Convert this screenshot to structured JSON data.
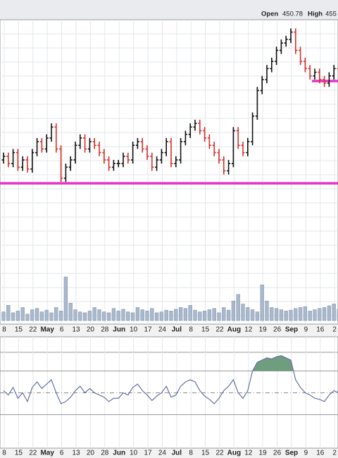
{
  "chart_data": {
    "type": "ohlc",
    "header": {
      "open_label": "Open",
      "open": 450.78,
      "high_label": "High",
      "high": 455
    },
    "categories": [
      "8",
      null,
      null,
      "15",
      null,
      null,
      "22",
      null,
      null,
      "May",
      null,
      null,
      "6",
      null,
      null,
      "13",
      null,
      null,
      "20",
      null,
      null,
      "28",
      null,
      null,
      "Jun",
      null,
      null,
      "10",
      null,
      null,
      "17",
      null,
      null,
      "24",
      null,
      null,
      "Jul",
      null,
      null,
      "8",
      null,
      null,
      "15",
      null,
      null,
      "22",
      null,
      null,
      "Aug",
      null,
      null,
      "12",
      null,
      null,
      "19",
      null,
      null,
      "26",
      null,
      null,
      "Sep",
      null,
      null,
      "9",
      null,
      null,
      "16",
      null,
      null,
      "2",
      null,
      null
    ],
    "month_labels": [
      "May",
      "Jun",
      "Jul",
      "Aug",
      "Sep"
    ],
    "ylim": [
      380,
      462
    ],
    "up_color": "#111111",
    "down_color": "#d9302a",
    "open": [
      424,
      425,
      423,
      426,
      422,
      424,
      421.5,
      426,
      429,
      427,
      430,
      433,
      427,
      419,
      422,
      424,
      428,
      430,
      427,
      429,
      428,
      426,
      424,
      422,
      423,
      423,
      425,
      424,
      428,
      429,
      427,
      425,
      422,
      424,
      426,
      429,
      423,
      424,
      429,
      431,
      433,
      434,
      432,
      430,
      428,
      426,
      424,
      421,
      423,
      432,
      428,
      426,
      429,
      436,
      443,
      446,
      449,
      451,
      454,
      456,
      457,
      459,
      454,
      451,
      449,
      447,
      448,
      446,
      445,
      447,
      449,
      447
    ],
    "high": [
      426,
      426,
      427,
      427,
      425,
      425,
      427,
      430,
      430,
      431,
      434,
      434,
      428,
      423,
      425,
      429,
      431,
      431,
      430,
      430,
      429,
      427,
      425,
      424,
      424,
      426,
      426,
      429,
      430,
      430,
      428,
      426,
      425,
      427,
      430,
      430,
      425,
      430,
      432,
      434,
      435,
      435,
      433,
      431,
      429,
      427,
      425,
      424,
      433,
      433,
      429,
      430,
      437,
      444,
      447,
      450,
      452,
      455,
      457,
      458,
      460,
      460,
      455,
      452,
      450,
      449,
      449,
      447,
      448,
      450,
      450,
      449
    ],
    "low": [
      423,
      422,
      422,
      421,
      421,
      420.5,
      420.5,
      425,
      426,
      426,
      429,
      426,
      418,
      418,
      421,
      423,
      427,
      426,
      426,
      427,
      425,
      423,
      421,
      421,
      422,
      422,
      423,
      423,
      427,
      426,
      424,
      421,
      421,
      423,
      425,
      422,
      422,
      423,
      428,
      430,
      432,
      431,
      429,
      427,
      425,
      423,
      420,
      420,
      422,
      427,
      425,
      425,
      428,
      435,
      442,
      445,
      448,
      450,
      453,
      455,
      456,
      453,
      450,
      448,
      446,
      446,
      445,
      444,
      444,
      446,
      446,
      446
    ],
    "close": [
      425,
      423,
      426,
      422,
      424,
      421.5,
      426,
      429,
      427,
      430,
      433,
      427,
      419,
      422,
      424,
      428,
      430,
      427,
      429,
      428,
      426,
      424,
      422,
      423,
      423,
      425,
      424,
      428,
      429,
      427,
      425,
      422,
      424,
      426,
      429,
      423,
      424,
      429,
      431,
      433,
      434,
      432,
      430,
      428,
      426,
      424,
      421,
      423,
      432,
      428,
      426,
      429,
      436,
      443,
      446,
      449,
      451,
      454,
      456,
      457,
      459,
      454,
      451,
      449,
      447,
      448,
      446,
      445,
      447,
      449,
      447,
      448
    ],
    "levels": [
      417.6,
      445.6
    ],
    "level_color": "#e235c8",
    "volume": {
      "values": [
        20,
        35,
        18,
        22,
        30,
        15,
        25,
        28,
        20,
        24,
        18,
        30,
        22,
        100,
        40,
        25,
        20,
        18,
        22,
        30,
        25,
        20,
        18,
        28,
        22,
        26,
        20,
        18,
        30,
        25,
        22,
        28,
        18,
        20,
        24,
        22,
        26,
        30,
        28,
        35,
        24,
        20,
        22,
        25,
        28,
        18,
        30,
        24,
        45,
        60,
        38,
        30,
        25,
        20,
        82,
        45,
        30,
        28,
        25,
        22,
        24,
        28,
        30,
        32,
        22,
        25,
        28,
        30,
        34,
        38,
        26,
        40
      ],
      "ylim": [
        0,
        100
      ],
      "color": "#a9b8cc"
    },
    "rsi": {
      "values": [
        52,
        48,
        55,
        45,
        50,
        42,
        55,
        60,
        54,
        58,
        62,
        50,
        40,
        42,
        46,
        52,
        56,
        50,
        54,
        50,
        48,
        46,
        42,
        45,
        45,
        50,
        48,
        55,
        58,
        52,
        48,
        43,
        47,
        50,
        56,
        46,
        48,
        56,
        60,
        62,
        60,
        52,
        47,
        44,
        40,
        45,
        52,
        56,
        62,
        50,
        45,
        52,
        70,
        78,
        80,
        82,
        81,
        83,
        84,
        82,
        80,
        62,
        55,
        50,
        48,
        45,
        44,
        42,
        48,
        52,
        50,
        53
      ],
      "ylim": [
        0,
        100
      ],
      "yticks": [
        30,
        50,
        70
      ],
      "color": "#6670a8",
      "overbought_color": "#6e9e7e"
    }
  }
}
